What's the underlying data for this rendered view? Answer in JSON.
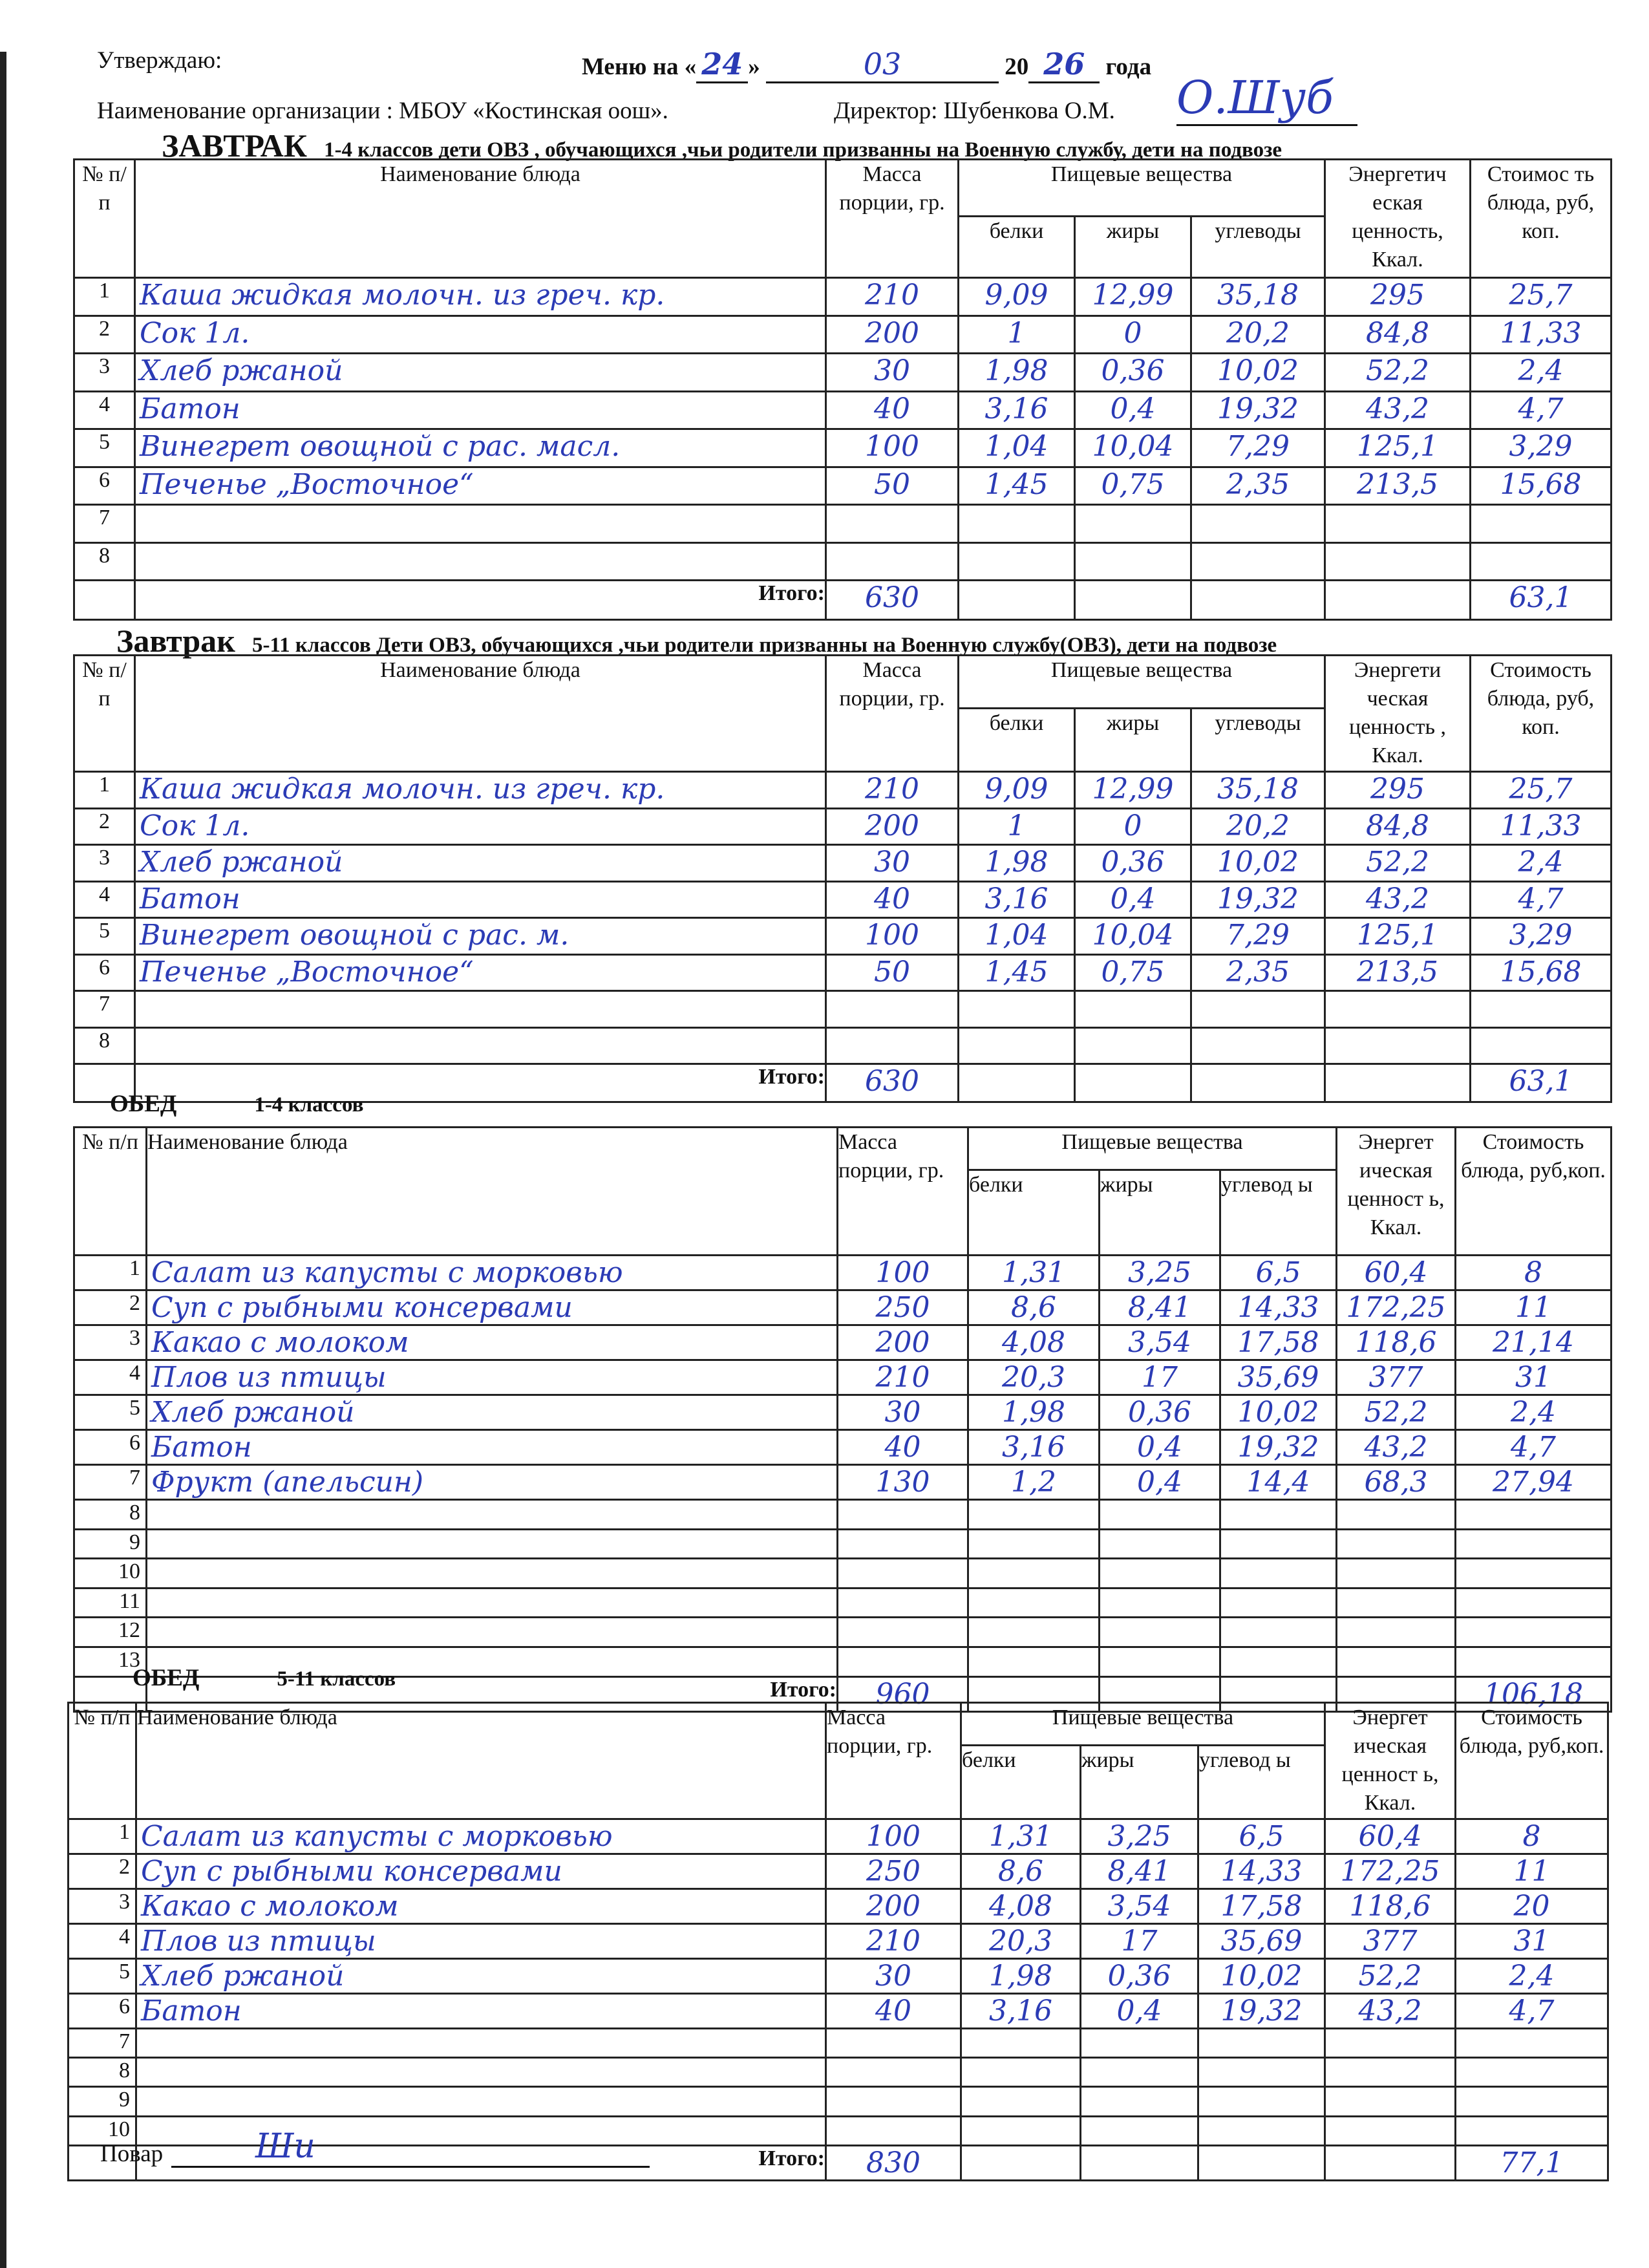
{
  "header": {
    "approve": "Утверждаю:",
    "menu_prefix": "Меню на «",
    "day": "24",
    "menu_mid": "»",
    "month": "03",
    "year_prefix": "20",
    "year_suffix": "26",
    "year_word": "года",
    "organization": "Наименование организации : МБОУ «Костинская оош».",
    "director": "Директор: Шубенкова О.М.",
    "director_signature": "О.Шуб"
  },
  "columns": {
    "num": "№ п/п",
    "name": "Наименование блюда",
    "mass": "Масса порции, гр.",
    "nutrients": "Пищевые вещества",
    "protein": "белки",
    "fat": "жиры",
    "carbs": "углеводы",
    "energy": "Энергетическая ценность, Ккал.",
    "cost": "Стоимость блюда, руб, коп."
  },
  "total_label": "Итого:",
  "sections": [
    {
      "title_bold": "ЗАВТРАК",
      "title_rest": "1-4 классов дети ОВЗ , обучающихся ,чьи родители призванны на Военную службу, дети на подвозе",
      "header_labels": {
        "num": "№ п/ п",
        "mass": "Масса порции, гр.",
        "energy": "Энергетич еская ценность, Ккал.",
        "cost": "Стоимос ть блюда, руб, коп.",
        "carbs": "углеводы"
      },
      "rows": [
        {
          "n": "1",
          "name": "Каша жидкая молочн. из греч. кр.",
          "mass": "210",
          "protein": "9,09",
          "fat": "12,99",
          "carbs": "35,18",
          "energy": "295",
          "cost": "25,7"
        },
        {
          "n": "2",
          "name": "Сок 1л.",
          "mass": "200",
          "protein": "1",
          "fat": "0",
          "carbs": "20,2",
          "energy": "84,8",
          "cost": "11,33"
        },
        {
          "n": "3",
          "name": "Хлеб ржаной",
          "mass": "30",
          "protein": "1,98",
          "fat": "0,36",
          "carbs": "10,02",
          "energy": "52,2",
          "cost": "2,4"
        },
        {
          "n": "4",
          "name": "Батон",
          "mass": "40",
          "protein": "3,16",
          "fat": "0,4",
          "carbs": "19,32",
          "energy": "43,2",
          "cost": "4,7"
        },
        {
          "n": "5",
          "name": "Винегрет овощной с рас. масл.",
          "mass": "100",
          "protein": "1,04",
          "fat": "10,04",
          "carbs": "7,29",
          "energy": "125,1",
          "cost": "3,29"
        },
        {
          "n": "6",
          "name": "Печенье „Восточное“",
          "mass": "50",
          "protein": "1,45",
          "fat": "0,75",
          "carbs": "2,35",
          "energy": "213,5",
          "cost": "15,68"
        },
        {
          "n": "7"
        },
        {
          "n": "8"
        }
      ],
      "total_mass": "630",
      "total_cost": "63,1"
    },
    {
      "title_bold": "Завтрак",
      "title_rest": "5-11 классов Дети ОВЗ,     обучающихся ,чьи родители призванны на Военную службу(ОВЗ), дети на подвозе",
      "header_labels": {
        "num": "№ п/ п",
        "mass": "Масса порции, гр.",
        "energy": "Энергети ческая ценность , Ккал.",
        "cost": "Стоимость блюда, руб, коп.",
        "carbs": "углеводы"
      },
      "rows": [
        {
          "n": "1",
          "name": "Каша жидкая молочн. из греч. кр.",
          "mass": "210",
          "protein": "9,09",
          "fat": "12,99",
          "carbs": "35,18",
          "energy": "295",
          "cost": "25,7"
        },
        {
          "n": "2",
          "name": "Сок 1л.",
          "mass": "200",
          "protein": "1",
          "fat": "0",
          "carbs": "20,2",
          "energy": "84,8",
          "cost": "11,33"
        },
        {
          "n": "3",
          "name": "Хлеб ржаной",
          "mass": "30",
          "protein": "1,98",
          "fat": "0,36",
          "carbs": "10,02",
          "energy": "52,2",
          "cost": "2,4"
        },
        {
          "n": "4",
          "name": "Батон",
          "mass": "40",
          "protein": "3,16",
          "fat": "0,4",
          "carbs": "19,32",
          "energy": "43,2",
          "cost": "4,7"
        },
        {
          "n": "5",
          "name": "Винегрет овощной с рас. м.",
          "mass": "100",
          "protein": "1,04",
          "fat": "10,04",
          "carbs": "7,29",
          "energy": "125,1",
          "cost": "3,29"
        },
        {
          "n": "6",
          "name": "Печенье „Восточное“",
          "mass": "50",
          "protein": "1,45",
          "fat": "0,75",
          "carbs": "2,35",
          "energy": "213,5",
          "cost": "15,68"
        },
        {
          "n": "7"
        },
        {
          "n": "8"
        }
      ],
      "total_mass": "630",
      "total_cost": "63,1"
    },
    {
      "title_bold": "ОБЕД",
      "title_rest": "1-4 классов",
      "header_labels": {
        "num": "№ п/п",
        "mass": "Масса порции, гр.",
        "energy": "Энергет ическая ценност ь, Ккал.",
        "cost": "Стоимость блюда, руб,коп.",
        "carbs": "углевод ы"
      },
      "rows": [
        {
          "n": "1",
          "name": "Салат из капусты с морковью",
          "mass": "100",
          "protein": "1,31",
          "fat": "3,25",
          "carbs": "6,5",
          "energy": "60,4",
          "cost": "8"
        },
        {
          "n": "2",
          "name": "Суп с рыбными консервами",
          "mass": "250",
          "protein": "8,6",
          "fat": "8,41",
          "carbs": "14,33",
          "energy": "172,25",
          "cost": "11"
        },
        {
          "n": "3",
          "name": "Какао с молоком",
          "mass": "200",
          "protein": "4,08",
          "fat": "3,54",
          "carbs": "17,58",
          "energy": "118,6",
          "cost": "21,14"
        },
        {
          "n": "4",
          "name": "Плов из птицы",
          "mass": "210",
          "protein": "20,3",
          "fat": "17",
          "carbs": "35,69",
          "energy": "377",
          "cost": "31"
        },
        {
          "n": "5",
          "name": "Хлеб ржаной",
          "mass": "30",
          "protein": "1,98",
          "fat": "0,36",
          "carbs": "10,02",
          "energy": "52,2",
          "cost": "2,4"
        },
        {
          "n": "6",
          "name": "Батон",
          "mass": "40",
          "protein": "3,16",
          "fat": "0,4",
          "carbs": "19,32",
          "energy": "43,2",
          "cost": "4,7"
        },
        {
          "n": "7",
          "name": "Фрукт (апельсин)",
          "mass": "130",
          "protein": "1,2",
          "fat": "0,4",
          "carbs": "14,4",
          "energy": "68,3",
          "cost": "27,94"
        },
        {
          "n": "8"
        },
        {
          "n": "9"
        },
        {
          "n": "10"
        },
        {
          "n": "11"
        },
        {
          "n": "12"
        },
        {
          "n": "13"
        }
      ],
      "total_mass": "960",
      "total_cost": "106,18"
    },
    {
      "title_bold": "ОБЕД",
      "title_rest": "5-11 классов",
      "header_labels": {
        "num": "№ п/п",
        "mass": "Масса порции, гр.",
        "energy": "Энергет ическая ценност ь, Ккал.",
        "cost": "Стоимость блюда, руб,коп.",
        "carbs": "углевод ы"
      },
      "rows": [
        {
          "n": "1",
          "name": "Салат из капусты с морковью",
          "mass": "100",
          "protein": "1,31",
          "fat": "3,25",
          "carbs": "6,5",
          "energy": "60,4",
          "cost": "8"
        },
        {
          "n": "2",
          "name": "Суп с рыбными консервами",
          "mass": "250",
          "protein": "8,6",
          "fat": "8,41",
          "carbs": "14,33",
          "energy": "172,25",
          "cost": "11"
        },
        {
          "n": "3",
          "name": "Какао с молоком",
          "mass": "200",
          "protein": "4,08",
          "fat": "3,54",
          "carbs": "17,58",
          "energy": "118,6",
          "cost": "20"
        },
        {
          "n": "4",
          "name": "Плов из птицы",
          "mass": "210",
          "protein": "20,3",
          "fat": "17",
          "carbs": "35,69",
          "energy": "377",
          "cost": "31"
        },
        {
          "n": "5",
          "name": "Хлеб ржаной",
          "mass": "30",
          "protein": "1,98",
          "fat": "0,36",
          "carbs": "10,02",
          "energy": "52,2",
          "cost": "2,4"
        },
        {
          "n": "6",
          "name": "Батон",
          "mass": "40",
          "protein": "3,16",
          "fat": "0,4",
          "carbs": "19,32",
          "energy": "43,2",
          "cost": "4,7"
        },
        {
          "n": "7"
        },
        {
          "n": "8"
        },
        {
          "n": "9"
        },
        {
          "n": "10"
        }
      ],
      "total_mass": "830",
      "total_cost": "77,1"
    }
  ],
  "footer": {
    "cook_label": "Повар",
    "cook_signature": "Ши"
  }
}
